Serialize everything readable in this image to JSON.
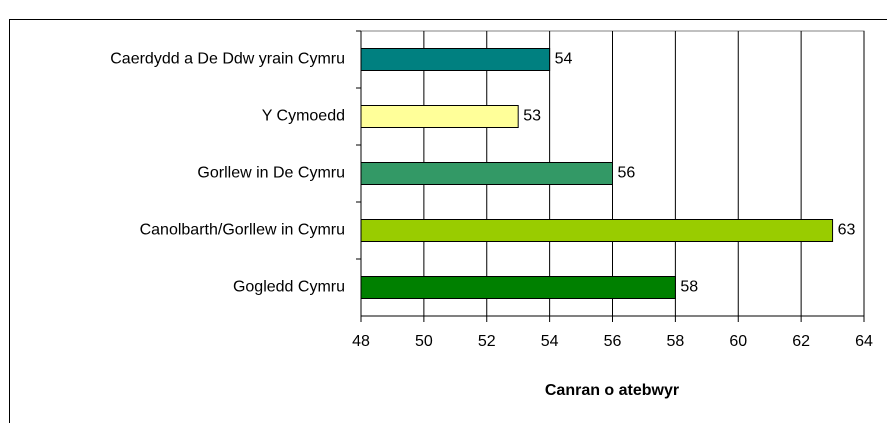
{
  "chart_data": {
    "type": "bar",
    "orientation": "horizontal",
    "x_label": "Canran o atebwyr",
    "categories": [
      "Caerdydd a De Ddw yrain Cymru",
      "Y Cymoedd",
      "Gorllew in De Cymru",
      "Canolbarth/Gorllew in Cymru",
      "Gogledd Cymru"
    ],
    "values": [
      54,
      53,
      56,
      63,
      58
    ],
    "colors": [
      "#008080",
      "#ffff99",
      "#339966",
      "#99cc00",
      "#008000"
    ],
    "xlim": [
      48,
      64
    ],
    "xticks": [
      48,
      50,
      52,
      54,
      56,
      58,
      60,
      62,
      64
    ],
    "grid": true
  }
}
